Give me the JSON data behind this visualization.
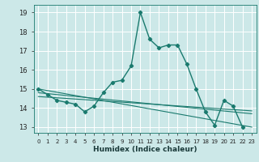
{
  "xlabel": "Humidex (Indice chaleur)",
  "xlim": [
    -0.5,
    23.5
  ],
  "ylim": [
    12.7,
    19.4
  ],
  "yticks": [
    13,
    14,
    15,
    16,
    17,
    18,
    19
  ],
  "xticks": [
    0,
    1,
    2,
    3,
    4,
    5,
    6,
    7,
    8,
    9,
    10,
    11,
    12,
    13,
    14,
    15,
    16,
    17,
    18,
    19,
    20,
    21,
    22,
    23
  ],
  "bg_color": "#cce8e8",
  "grid_color": "#aad4d4",
  "line_color": "#1a7a6e",
  "main_series": [
    15.0,
    14.7,
    14.4,
    14.3,
    14.2,
    13.8,
    14.1,
    14.8,
    15.35,
    15.45,
    16.2,
    19.0,
    17.6,
    17.15,
    17.3,
    17.3,
    16.3,
    15.0,
    13.8,
    13.1,
    14.4,
    14.1,
    13.0,
    null
  ],
  "flat_lines": [
    {
      "x0": 0,
      "y0": 15.0,
      "x1": 23,
      "y1": 13.0
    },
    {
      "x0": 0,
      "y0": 14.8,
      "x1": 23,
      "y1": 13.7
    },
    {
      "x0": 0,
      "y0": 14.6,
      "x1": 23,
      "y1": 13.85
    }
  ]
}
